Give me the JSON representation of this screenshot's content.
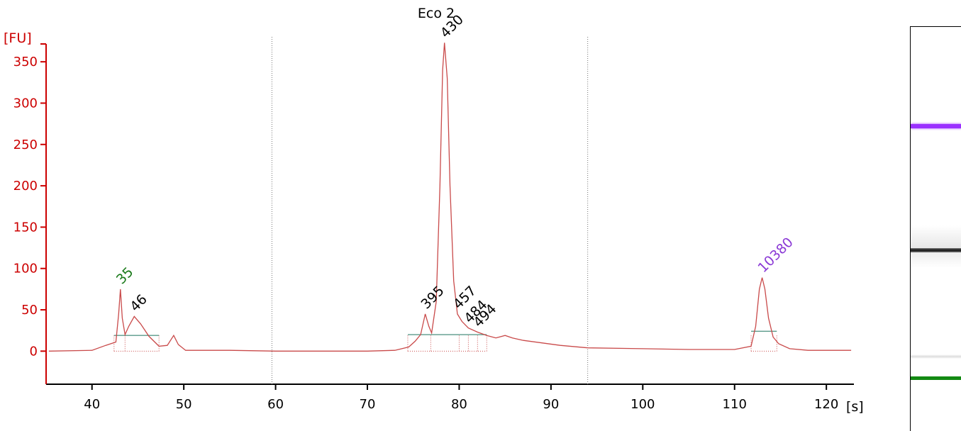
{
  "chart_data": {
    "type": "line",
    "title": "Eco 2",
    "xlabel": "[s]",
    "ylabel": "[FU]",
    "xlim": [
      35,
      123
    ],
    "ylim": [
      -40,
      375
    ],
    "x_ticks": [
      40,
      50,
      60,
      70,
      80,
      90,
      100,
      110,
      120
    ],
    "y_ticks": [
      0,
      50,
      100,
      150,
      200,
      250,
      300,
      350
    ],
    "grid": false,
    "dashed_verticals_x": [
      59.6,
      94.0
    ],
    "series": [
      {
        "color": "#c94a4a",
        "x": [
          35.3,
          40.0,
          41.5,
          42.6,
          42.9,
          43.1,
          43.3,
          43.6,
          44.0,
          44.6,
          45.3,
          46.2,
          47.3,
          48.2,
          48.9,
          49.4,
          50.2,
          55.0,
          60.0,
          65.0,
          70.0,
          73.0,
          74.5,
          75.2,
          75.8,
          76.3,
          76.7,
          77.0,
          77.5,
          77.9,
          78.2,
          78.4,
          78.7,
          79.0,
          79.4,
          79.8,
          80.3,
          81.0,
          82.0,
          83.0,
          84.0,
          85.0,
          85.8,
          87.0,
          89.0,
          91.0,
          94.0,
          100.0,
          105.0,
          110.0,
          111.8,
          112.3,
          112.7,
          113.0,
          113.3,
          113.7,
          114.2,
          114.8,
          116.0,
          118.0,
          121.0,
          122.7
        ],
        "values": [
          0,
          1,
          7,
          11,
          45,
          75,
          40,
          20,
          30,
          42,
          33,
          18,
          6,
          7,
          19,
          8,
          1,
          1,
          0,
          0,
          0,
          1,
          5,
          12,
          20,
          45,
          30,
          22,
          60,
          200,
          340,
          373,
          330,
          200,
          85,
          45,
          36,
          28,
          23,
          19,
          16,
          19,
          16,
          13,
          10,
          7,
          4,
          3,
          2,
          2,
          6,
          30,
          75,
          89,
          75,
          40,
          17,
          9,
          3,
          1,
          1,
          1
        ]
      }
    ],
    "peak_labels": [
      {
        "text": "35",
        "x": 43.1,
        "y": 75,
        "color": "#1a7a1a"
      },
      {
        "text": "46",
        "x": 44.6,
        "y": 42,
        "color": "#000000"
      },
      {
        "text": "395",
        "x": 76.3,
        "y": 45,
        "color": "#000000"
      },
      {
        "text": "430",
        "x": 78.4,
        "y": 373,
        "color": "#000000"
      },
      {
        "text": "457",
        "x": 79.8,
        "y": 45,
        "color": "#000000"
      },
      {
        "text": "484",
        "x": 81.0,
        "y": 28,
        "color": "#000000"
      },
      {
        "text": "494",
        "x": 82.0,
        "y": 23,
        "color": "#000000"
      },
      {
        "text": "10380",
        "x": 113.0,
        "y": 89,
        "color": "#8b3ad6"
      }
    ],
    "baselines": [
      {
        "x1": 42.4,
        "x2": 47.3,
        "y": 19
      },
      {
        "x1": 74.4,
        "x2": 83.0,
        "y": 20
      },
      {
        "x1": 111.8,
        "x2": 114.6,
        "y": 24
      }
    ],
    "marker_dividers_x": [
      42.4,
      43.6,
      47.3,
      74.4,
      76.9,
      80.0,
      81.0,
      82.0,
      83.0,
      111.8,
      114.6
    ]
  },
  "gel_lane": {
    "bands": [
      {
        "label": "upper marker",
        "color": "#9b30ff"
      },
      {
        "label": "main band",
        "color": "#1a1a1a"
      },
      {
        "label": "lower marker",
        "color": "#138a13"
      }
    ]
  }
}
